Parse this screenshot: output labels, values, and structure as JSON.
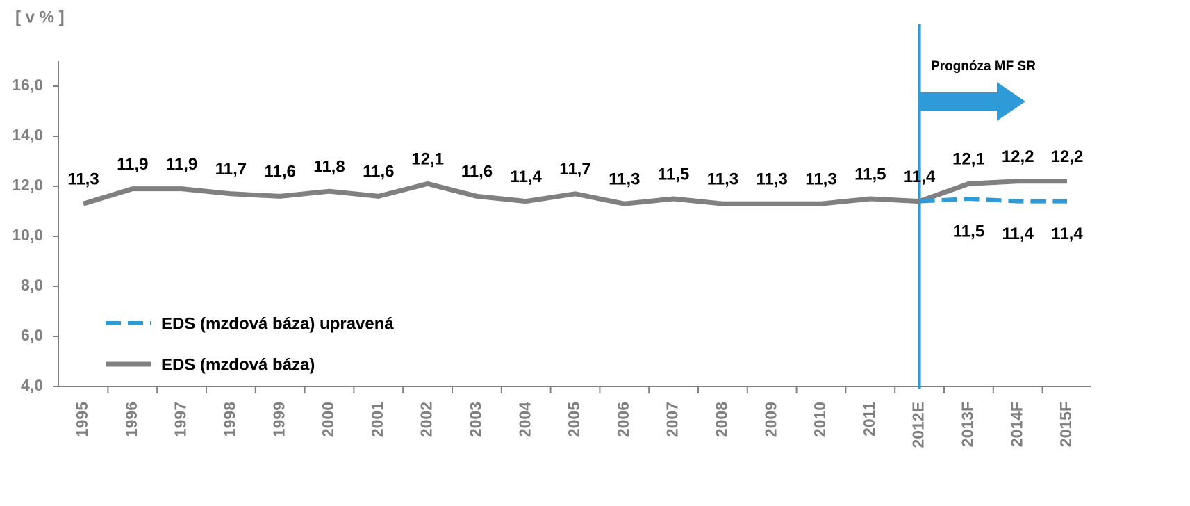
{
  "chart_data": {
    "type": "line",
    "unit_label": "[ v % ]",
    "annotation": "Prognóza MF SR",
    "forecast_start": "2012E",
    "categories": [
      "1995",
      "1996",
      "1997",
      "1998",
      "1999",
      "2000",
      "2001",
      "2002",
      "2003",
      "2004",
      "2005",
      "2006",
      "2007",
      "2008",
      "2009",
      "2010",
      "2011",
      "2012E",
      "2013F",
      "2014F",
      "2015F"
    ],
    "series": [
      {
        "name": "EDS (mzdová báza) upravená",
        "color": "#2e9ad8",
        "dashed": true,
        "values": [
          null,
          null,
          null,
          null,
          null,
          null,
          null,
          null,
          null,
          null,
          null,
          null,
          null,
          null,
          null,
          null,
          null,
          11.4,
          11.5,
          11.4,
          11.4
        ],
        "value_labels": [
          null,
          null,
          null,
          null,
          null,
          null,
          null,
          null,
          null,
          null,
          null,
          null,
          null,
          null,
          null,
          null,
          null,
          null,
          "11,5",
          "11,4",
          "11,4"
        ]
      },
      {
        "name": "EDS (mzdová báza)",
        "color": "#808080",
        "dashed": false,
        "values": [
          11.3,
          11.9,
          11.9,
          11.7,
          11.6,
          11.8,
          11.6,
          12.1,
          11.6,
          11.4,
          11.7,
          11.3,
          11.5,
          11.3,
          11.3,
          11.3,
          11.5,
          11.4,
          12.1,
          12.2,
          12.2
        ],
        "value_labels": [
          "11,3",
          "11,9",
          "11,9",
          "11,7",
          "11,6",
          "11,8",
          "11,6",
          "12,1",
          "11,6",
          "11,4",
          "11,7",
          "11,3",
          "11,5",
          "11,3",
          "11,3",
          "11,3",
          "11,5",
          "11,4",
          "12,1",
          "12,2",
          "12,2"
        ]
      }
    ],
    "ylim": [
      4,
      17
    ],
    "yticks": [
      {
        "value": 4,
        "label": "4,0"
      },
      {
        "value": 6,
        "label": "6,0"
      },
      {
        "value": 8,
        "label": "8,0"
      },
      {
        "value": 10,
        "label": "10,0"
      },
      {
        "value": 12,
        "label": "12,0"
      },
      {
        "value": 14,
        "label": "14,0"
      },
      {
        "value": 16,
        "label": "16,0"
      }
    ],
    "grid": false,
    "legend": "lower left"
  }
}
